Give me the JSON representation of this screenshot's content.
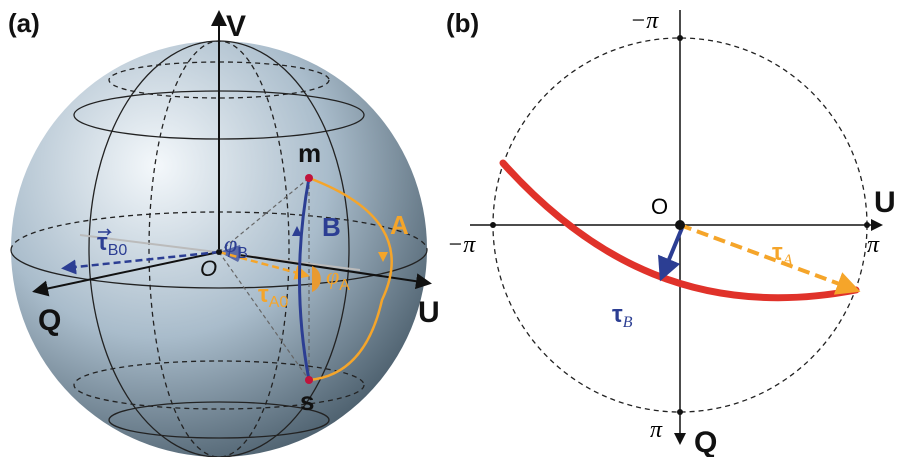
{
  "panel_a": {
    "label": "(a)",
    "axes": {
      "v": "V",
      "u": "U",
      "q": "Q"
    },
    "points": {
      "m": "m",
      "s": "s",
      "origin": "O"
    },
    "paths": {
      "a": "A",
      "b": "B"
    },
    "angles": {
      "phi_b": {
        "symbol": "φ",
        "sub": "B"
      },
      "phi_a": {
        "symbol": "φ",
        "sub": "A"
      }
    },
    "vectors": {
      "tau_a0": {
        "symbol": "τ",
        "sub": "A0"
      },
      "tau_b0": {
        "symbol": "τ",
        "sub": "B0"
      }
    }
  },
  "panel_b": {
    "label": "(b)",
    "ticks": {
      "top": "−π",
      "bottom": "π",
      "left": "−π",
      "right": "π"
    },
    "origin": "O",
    "axes": {
      "u": "U",
      "q": "Q"
    },
    "vectors": {
      "tau_a": {
        "symbol": "τ",
        "sub": "A"
      },
      "tau_b": {
        "symbol": "τ",
        "sub": "B"
      }
    }
  }
}
